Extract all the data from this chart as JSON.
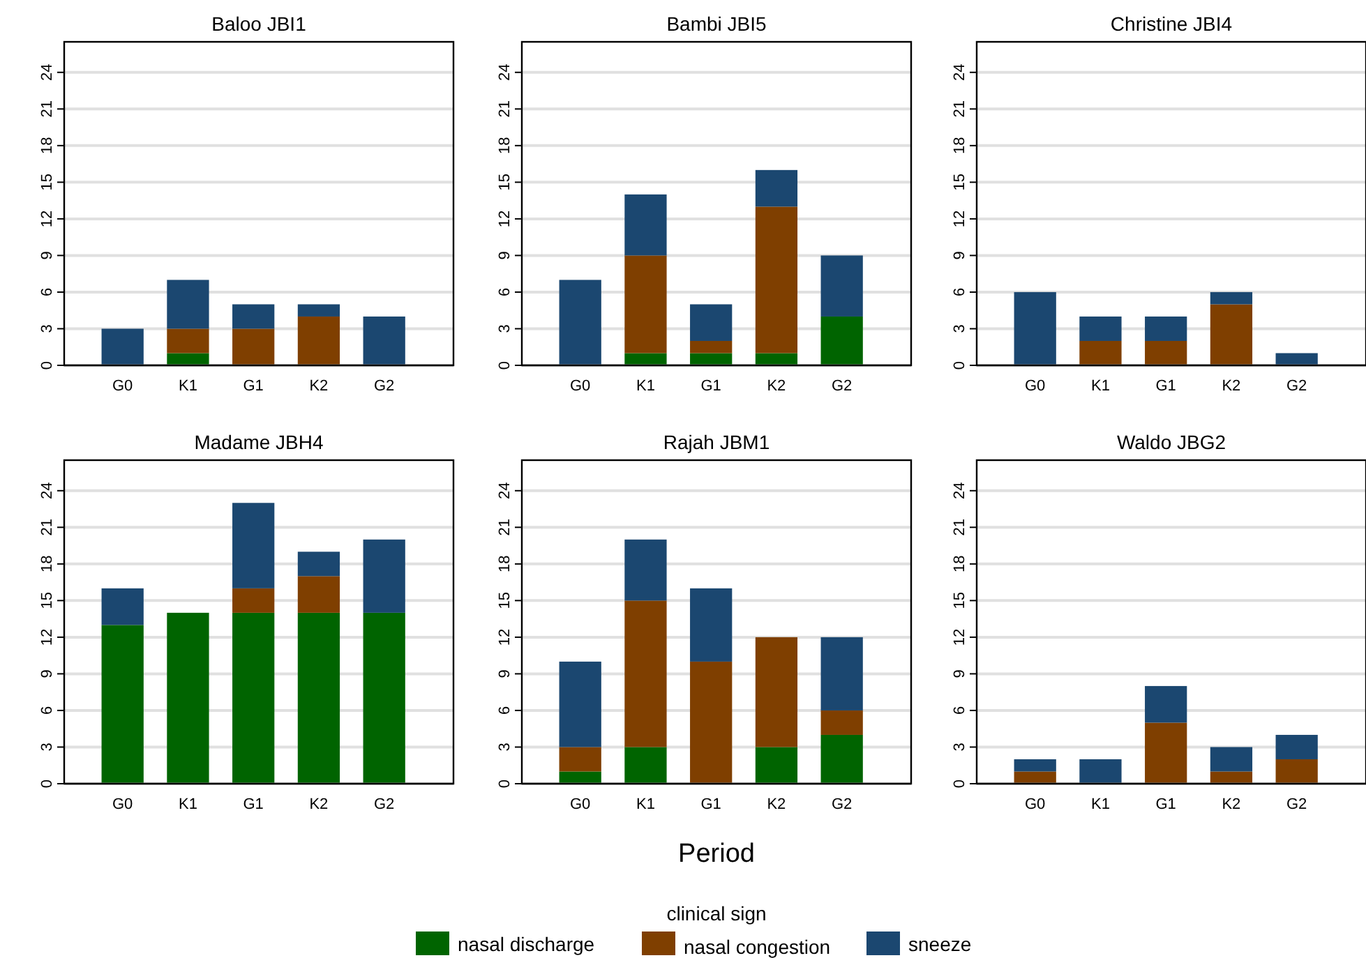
{
  "chart_data": [
    {
      "type": "bar",
      "title": "Baloo JBI1",
      "categories": [
        "G0",
        "K1",
        "G1",
        "K2",
        "G2"
      ],
      "stacked": true,
      "ylim": [
        0,
        26.5
      ],
      "yticks": [
        0,
        3,
        6,
        9,
        12,
        15,
        18,
        21,
        24
      ],
      "grid": "y",
      "series": [
        {
          "color": "#006400",
          "values": [
            0,
            1,
            0,
            0,
            0
          ]
        },
        {
          "color": "#7f3f00",
          "values": [
            0,
            2,
            3,
            4,
            0
          ]
        },
        {
          "color": "#1b4770",
          "values": [
            3,
            4,
            2,
            1,
            4
          ]
        }
      ]
    },
    {
      "type": "bar",
      "title": "Bambi JBI5",
      "categories": [
        "G0",
        "K1",
        "G1",
        "K2",
        "G2"
      ],
      "stacked": true,
      "ylim": [
        0,
        26.5
      ],
      "yticks": [
        0,
        3,
        6,
        9,
        12,
        15,
        18,
        21,
        24
      ],
      "grid": "y",
      "series": [
        {
          "color": "#006400",
          "values": [
            0,
            1,
            1,
            1,
            4
          ]
        },
        {
          "color": "#7f3f00",
          "values": [
            0,
            8,
            1,
            12,
            0
          ]
        },
        {
          "color": "#1b4770",
          "values": [
            7,
            5,
            3,
            3,
            5
          ]
        }
      ]
    },
    {
      "type": "bar",
      "title": "Christine JBI4",
      "categories": [
        "G0",
        "K1",
        "G1",
        "K2",
        "G2"
      ],
      "stacked": true,
      "ylim": [
        0,
        26.5
      ],
      "yticks": [
        0,
        3,
        6,
        9,
        12,
        15,
        18,
        21,
        24
      ],
      "grid": "y",
      "series": [
        {
          "color": "#006400",
          "values": [
            0,
            0,
            0,
            0,
            0
          ]
        },
        {
          "color": "#7f3f00",
          "values": [
            0,
            2,
            2,
            5,
            0
          ]
        },
        {
          "color": "#1b4770",
          "values": [
            6,
            2,
            2,
            1,
            1
          ]
        }
      ]
    },
    {
      "type": "bar",
      "title": "Madame JBH4",
      "categories": [
        "G0",
        "K1",
        "G1",
        "K2",
        "G2"
      ],
      "stacked": true,
      "ylim": [
        0,
        26.5
      ],
      "yticks": [
        0,
        3,
        6,
        9,
        12,
        15,
        18,
        21,
        24
      ],
      "grid": "y",
      "series": [
        {
          "color": "#006400",
          "values": [
            13,
            14,
            14,
            14,
            14
          ]
        },
        {
          "color": "#7f3f00",
          "values": [
            0,
            0,
            2,
            3,
            0
          ]
        },
        {
          "color": "#1b4770",
          "values": [
            3,
            0,
            7,
            2,
            6
          ]
        }
      ]
    },
    {
      "type": "bar",
      "title": "Rajah JBM1",
      "xlabel": "Period",
      "legend_title": "clinical sign",
      "legend": "bottom",
      "categories": [
        "G0",
        "K1",
        "G1",
        "K2",
        "G2"
      ],
      "stacked": true,
      "ylim": [
        0,
        26.5
      ],
      "yticks": [
        0,
        3,
        6,
        9,
        12,
        15,
        18,
        21,
        24
      ],
      "grid": "y",
      "series": [
        {
          "name": "nasal discharge",
          "color": "#006400",
          "values": [
            1,
            3,
            0,
            3,
            4
          ]
        },
        {
          "name": "nasal congestion",
          "color": "#7f3f00",
          "values": [
            2,
            12,
            10,
            9,
            2
          ]
        },
        {
          "name": "sneeze",
          "color": "#1b4770",
          "values": [
            7,
            5,
            6,
            0,
            6
          ]
        }
      ]
    },
    {
      "type": "bar",
      "title": "Waldo JBG2",
      "categories": [
        "G0",
        "K1",
        "G1",
        "K2",
        "G2"
      ],
      "stacked": true,
      "ylim": [
        0,
        26.5
      ],
      "yticks": [
        0,
        3,
        6,
        9,
        12,
        15,
        18,
        21,
        24
      ],
      "grid": "y",
      "series": [
        {
          "color": "#006400",
          "values": [
            0,
            0,
            0,
            0,
            0
          ]
        },
        {
          "color": "#7f3f00",
          "values": [
            1,
            0,
            5,
            1,
            2
          ]
        },
        {
          "color": "#1b4770",
          "values": [
            1,
            2,
            3,
            2,
            2
          ]
        }
      ]
    }
  ]
}
